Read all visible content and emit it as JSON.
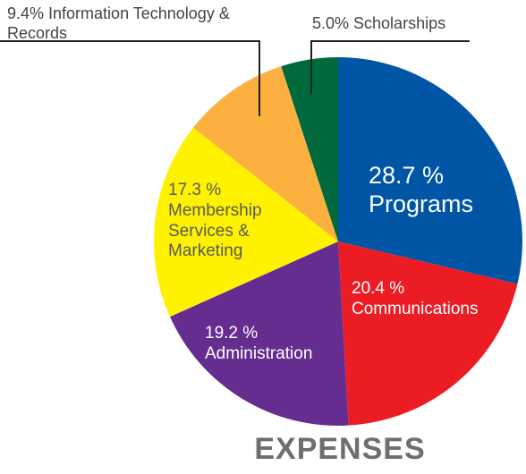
{
  "chart_data": {
    "type": "pie",
    "title": "EXPENSES",
    "categories": [
      "Programs",
      "Communications",
      "Administration",
      "Membership Services & Marketing",
      "Information Technology & Records",
      "Scholarships"
    ],
    "values": [
      28.7,
      20.4,
      19.2,
      17.3,
      9.4,
      5.0
    ],
    "value_labels": [
      "28.7 %",
      "20.4 %",
      "19.2 %",
      "17.3 %",
      "9.4%",
      "5.0%"
    ],
    "colors": [
      "#0055a5",
      "#ec1c24",
      "#662d91",
      "#fff200",
      "#fbb040",
      "#00693c"
    ]
  }
}
